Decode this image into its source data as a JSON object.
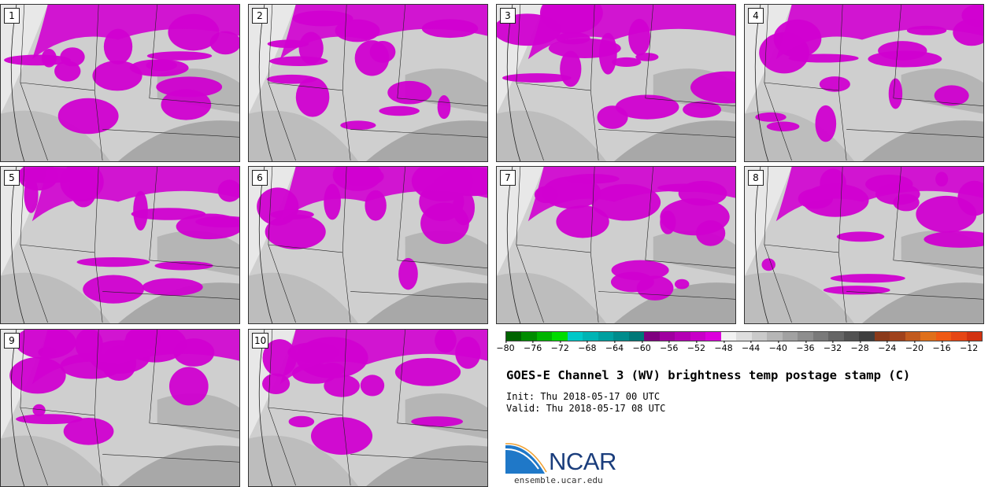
{
  "panels": [
    {
      "label": "1"
    },
    {
      "label": "2"
    },
    {
      "label": "3"
    },
    {
      "label": "4"
    },
    {
      "label": "5"
    },
    {
      "label": "6"
    },
    {
      "label": "7"
    },
    {
      "label": "8"
    },
    {
      "label": "9"
    },
    {
      "label": "10"
    }
  ],
  "colorbar": {
    "colors": [
      "#006400",
      "#008c00",
      "#00b400",
      "#00dc00",
      "#00c8c8",
      "#00b4b4",
      "#00a0a0",
      "#008c8c",
      "#007878",
      "#800080",
      "#a000a0",
      "#b400b4",
      "#c800c8",
      "#dc00dc",
      "#f2f2f2",
      "#dedede",
      "#cacaca",
      "#b6b6b6",
      "#a2a2a2",
      "#8e8e8e",
      "#7a7a7a",
      "#666666",
      "#525252",
      "#3e3e3e",
      "#8b3a1a",
      "#a0421c",
      "#c25a1e",
      "#e0701a",
      "#f05a14",
      "#e64614",
      "#d23210"
    ],
    "ticks": [
      "−80",
      "−76",
      "−72",
      "−68",
      "−64",
      "−60",
      "−56",
      "−52",
      "−48",
      "−44",
      "−40",
      "−36",
      "−32",
      "−28",
      "−24",
      "−20",
      "−16",
      "−12"
    ],
    "min": -80,
    "max": -10
  },
  "title": "GOES-E Channel 3 (WV) brightness temp postage stamp (C)",
  "init": "Init: Thu 2018-05-17 00 UTC",
  "valid": "Valid: Thu 2018-05-17 08 UTC",
  "logo": {
    "text": "NCAR",
    "site": "ensemble.ucar.edu"
  }
}
